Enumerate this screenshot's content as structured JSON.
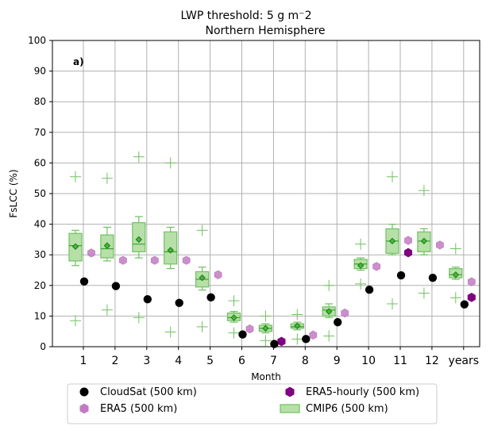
{
  "chart_data": {
    "type": "scatter",
    "title": "LWP threshold: 5 g m⁻2",
    "subtitle": "Northern Hemisphere",
    "panel_label": "a)",
    "xlabel": "Month",
    "ylabel": "FsLCC (%)",
    "ylim": [
      0,
      100
    ],
    "yticks": [
      0,
      10,
      20,
      30,
      40,
      50,
      60,
      70,
      80,
      90,
      100
    ],
    "categories": [
      "1",
      "2",
      "3",
      "4",
      "5",
      "6",
      "7",
      "8",
      "9",
      "10",
      "11",
      "12",
      "years"
    ],
    "grid": true,
    "legend_position": "bottom-outside",
    "colors": {
      "cloudsat": "#000000",
      "era5": "#c27bc2",
      "era5_hourly": "#800080",
      "cmip6_fill": "#b7e0a8",
      "cmip6_edge": "#6fc15f",
      "cmip6_median": "#3aa02f",
      "cmip6_mean_fill": "#46b83a",
      "cmip6_mean_edge": "#1f7a1a",
      "grid": "#b0b0b0"
    },
    "series": [
      {
        "name": "CloudSat (500 km)",
        "key": "cloudsat",
        "values": [
          21.3,
          19.8,
          15.5,
          14.3,
          16.1,
          4.0,
          0.9,
          2.5,
          8.0,
          18.6,
          23.3,
          22.5,
          13.8
        ]
      },
      {
        "name": "ERA5 (500 km)",
        "key": "era5",
        "values": [
          30.6,
          28.2,
          28.2,
          28.2,
          23.5,
          5.8,
          1.8,
          3.8,
          11.0,
          26.2,
          34.7,
          33.2,
          21.2
        ]
      },
      {
        "name": "ERA5-hourly (500 km)",
        "key": "era5_hourly",
        "values": [
          null,
          null,
          null,
          null,
          null,
          null,
          1.7,
          null,
          null,
          null,
          30.7,
          null,
          16.1
        ]
      },
      {
        "name": "CMIP6 (500 km)",
        "key": "cmip6",
        "boxes": [
          {
            "q1": 28.0,
            "median": 33.0,
            "q3": 37.0,
            "whislo": 26.5,
            "whishi": 38.0,
            "mean": 32.7,
            "fliers": [
              55.5,
              8.5
            ]
          },
          {
            "q1": 29.0,
            "median": 32.0,
            "q3": 36.5,
            "whislo": 28.0,
            "whishi": 39.0,
            "mean": 33.0,
            "fliers": [
              55.0,
              12.0
            ]
          },
          {
            "q1": 31.0,
            "median": 33.5,
            "q3": 40.5,
            "whislo": 29.0,
            "whishi": 42.5,
            "mean": 35.0,
            "fliers": [
              62.0,
              9.5
            ]
          },
          {
            "q1": 27.0,
            "median": 31.0,
            "q3": 37.5,
            "whislo": 25.5,
            "whishi": 39.0,
            "mean": 31.5,
            "fliers": [
              60.0,
              4.8
            ]
          },
          {
            "q1": 19.5,
            "median": 22.0,
            "q3": 24.5,
            "whislo": 18.5,
            "whishi": 26.0,
            "mean": 22.5,
            "fliers": [
              38.0,
              6.5
            ]
          },
          {
            "q1": 8.5,
            "median": 9.5,
            "q3": 11.0,
            "whislo": 8.0,
            "whishi": 11.5,
            "mean": 9.5,
            "fliers": [
              15.0,
              4.5
            ]
          },
          {
            "q1": 5.0,
            "median": 6.0,
            "q3": 7.0,
            "whislo": 4.5,
            "whishi": 7.5,
            "mean": 6.0,
            "fliers": [
              10.0,
              2.0
            ]
          },
          {
            "q1": 6.0,
            "median": 6.5,
            "q3": 7.5,
            "whislo": 5.5,
            "whishi": 8.0,
            "mean": 6.8,
            "fliers": [
              10.5,
              2.5
            ]
          },
          {
            "q1": 10.0,
            "median": 12.0,
            "q3": 13.0,
            "whislo": 9.5,
            "whishi": 14.0,
            "mean": 11.5,
            "fliers": [
              20.0,
              3.5
            ]
          },
          {
            "q1": 25.5,
            "median": 27.0,
            "q3": 28.5,
            "whislo": 25.0,
            "whishi": 29.0,
            "mean": 26.5,
            "fliers": [
              33.5,
              20.5
            ]
          },
          {
            "q1": 30.5,
            "median": 34.5,
            "q3": 38.5,
            "whislo": 30.0,
            "whishi": 40.0,
            "mean": 34.5,
            "fliers": [
              55.5,
              14.0
            ]
          },
          {
            "q1": 31.0,
            "median": 34.5,
            "q3": 37.5,
            "whislo": 30.0,
            "whishi": 38.5,
            "mean": 34.5,
            "fliers": [
              51.0,
              17.5
            ]
          },
          {
            "q1": 22.5,
            "median": 23.5,
            "q3": 25.5,
            "whislo": 22.0,
            "whishi": 26.0,
            "mean": 23.5,
            "fliers": [
              32.0,
              16.0
            ]
          }
        ]
      }
    ]
  }
}
